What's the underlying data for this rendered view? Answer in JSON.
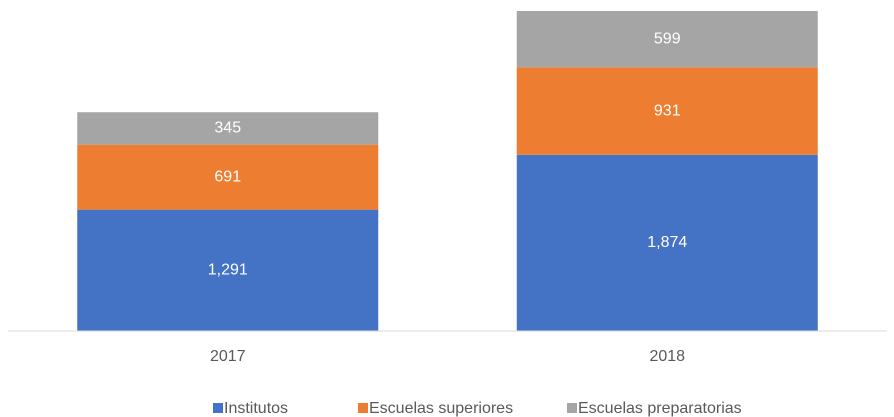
{
  "chart_data": {
    "type": "stacked_bar",
    "categories": [
      "2017",
      "2018"
    ],
    "series": [
      {
        "name": "Institutos",
        "color": "#4472c4",
        "values": [
          1291,
          1874
        ],
        "value_labels": [
          "1,291",
          "1,874"
        ]
      },
      {
        "name": "Escuelas superiores",
        "color": "#ed7d31",
        "values": [
          691,
          931
        ],
        "value_labels": [
          "691",
          "931"
        ]
      },
      {
        "name": "Escuelas preparatorias",
        "color": "#a5a5a5",
        "values": [
          345,
          599
        ],
        "value_labels": [
          "345",
          "599"
        ]
      }
    ],
    "legend": "bottom"
  }
}
